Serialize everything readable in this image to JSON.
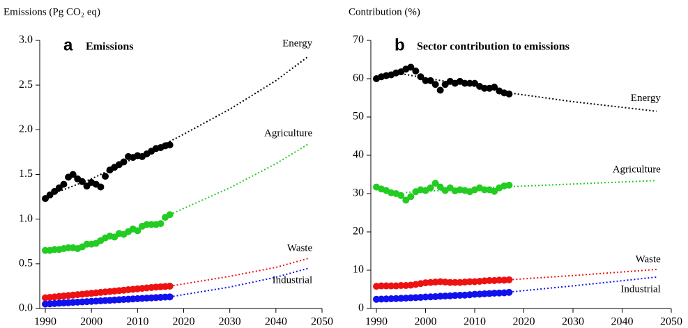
{
  "chart_data": [
    {
      "type": "scatter",
      "panel": "a",
      "title": "Emissions",
      "y_label": "Emissions (Pg CO₂ eq)",
      "x": [
        1990,
        1991,
        1992,
        1993,
        1994,
        1995,
        1996,
        1997,
        1998,
        1999,
        2000,
        2001,
        2002,
        2003,
        2004,
        2005,
        2006,
        2007,
        2008,
        2009,
        2010,
        2011,
        2012,
        2013,
        2014,
        2015,
        2016,
        2017
      ],
      "xlim": [
        1990,
        2050
      ],
      "xticks": [
        1990,
        2000,
        2010,
        2020,
        2030,
        2040,
        2050
      ],
      "ylim": [
        0,
        3
      ],
      "yticks": [
        {
          "value": 0,
          "label": "0.0"
        },
        {
          "value": 0.5,
          "label": "0.5"
        },
        {
          "value": 1,
          "label": "1.0"
        },
        {
          "value": 1.5,
          "label": "1.5"
        },
        {
          "value": 2,
          "label": "2.0"
        },
        {
          "value": 2.5,
          "label": "2.5"
        },
        {
          "value": 3,
          "label": "3.0"
        }
      ],
      "series": [
        {
          "name": "Energy",
          "color": "#000000",
          "values": [
            1.23,
            1.27,
            1.31,
            1.35,
            1.39,
            1.47,
            1.5,
            1.45,
            1.42,
            1.37,
            1.41,
            1.39,
            1.36,
            1.48,
            1.55,
            1.58,
            1.61,
            1.64,
            1.7,
            1.69,
            1.71,
            1.7,
            1.73,
            1.76,
            1.79,
            1.8,
            1.82,
            1.83
          ],
          "projection": {
            "x": [
              1990,
              2000,
              2010,
              2017,
              2020,
              2030,
              2040,
              2047
            ],
            "values": [
              1.25,
              1.45,
              1.7,
              1.87,
              1.95,
              2.23,
              2.55,
              2.82
            ]
          }
        },
        {
          "name": "Agriculture",
          "color": "#22cc22",
          "values": [
            0.65,
            0.65,
            0.66,
            0.66,
            0.67,
            0.68,
            0.68,
            0.67,
            0.69,
            0.72,
            0.72,
            0.73,
            0.76,
            0.79,
            0.81,
            0.8,
            0.84,
            0.83,
            0.86,
            0.89,
            0.87,
            0.92,
            0.94,
            0.94,
            0.94,
            0.95,
            1.02,
            1.05
          ],
          "projection": {
            "x": [
              2017,
              2020,
              2030,
              2040,
              2047
            ],
            "values": [
              1.05,
              1.12,
              1.35,
              1.62,
              1.84
            ]
          }
        },
        {
          "name": "Waste",
          "color": "#ee1111",
          "values": [
            0.12,
            0.125,
            0.13,
            0.135,
            0.14,
            0.145,
            0.15,
            0.155,
            0.16,
            0.165,
            0.17,
            0.175,
            0.18,
            0.185,
            0.19,
            0.195,
            0.2,
            0.205,
            0.21,
            0.215,
            0.22,
            0.225,
            0.23,
            0.235,
            0.24,
            0.243,
            0.246,
            0.25
          ],
          "projection": {
            "x": [
              2017,
              2030,
              2040,
              2047
            ],
            "values": [
              0.25,
              0.36,
              0.46,
              0.56
            ]
          }
        },
        {
          "name": "Industrial",
          "color": "#1111ee",
          "values": [
            0.05,
            0.053,
            0.056,
            0.059,
            0.062,
            0.065,
            0.068,
            0.071,
            0.074,
            0.077,
            0.08,
            0.083,
            0.086,
            0.089,
            0.092,
            0.095,
            0.098,
            0.101,
            0.104,
            0.107,
            0.11,
            0.113,
            0.116,
            0.119,
            0.122,
            0.125,
            0.128,
            0.13
          ],
          "projection": {
            "x": [
              2017,
              2030,
              2040,
              2047
            ],
            "values": [
              0.13,
              0.24,
              0.35,
              0.45
            ]
          }
        }
      ]
    },
    {
      "type": "scatter",
      "panel": "b",
      "title": "Sector contribution to emissions",
      "y_label": "Contribution (%)",
      "x": [
        1990,
        1991,
        1992,
        1993,
        1994,
        1995,
        1996,
        1997,
        1998,
        1999,
        2000,
        2001,
        2002,
        2003,
        2004,
        2005,
        2006,
        2007,
        2008,
        2009,
        2010,
        2011,
        2012,
        2013,
        2014,
        2015,
        2016,
        2017
      ],
      "xlim": [
        1990,
        2050
      ],
      "xticks": [
        1990,
        2000,
        2010,
        2020,
        2030,
        2040,
        2050
      ],
      "ylim": [
        0,
        70
      ],
      "yticks": [
        0,
        10,
        20,
        30,
        40,
        50,
        60,
        70
      ],
      "series": [
        {
          "name": "Energy",
          "color": "#000000",
          "values": [
            60,
            60.5,
            60.8,
            61,
            61.5,
            61.8,
            62.5,
            63,
            62,
            60.5,
            59.5,
            59.5,
            58.5,
            57,
            58.5,
            59.3,
            58.8,
            59.3,
            58.8,
            58.8,
            58.8,
            58,
            57.5,
            57.5,
            57.8,
            56.8,
            56.3,
            56
          ],
          "projection": {
            "x": [
              1995,
              2000,
              2010,
              2017,
              2030,
              2047
            ],
            "values": [
              61.3,
              60.2,
              58,
              56.3,
              54,
              51.5
            ]
          }
        },
        {
          "name": "Agriculture",
          "color": "#22cc22",
          "values": [
            31.7,
            31.2,
            30.8,
            30.2,
            30,
            29.5,
            28.3,
            29.2,
            30.5,
            31,
            30.8,
            31.5,
            32.7,
            31.7,
            30.8,
            31.5,
            30.7,
            31,
            30.8,
            30.5,
            31,
            31.5,
            31,
            31,
            30.6,
            31.5,
            32,
            32.2
          ],
          "projection": {
            "x": [
              1996,
              2017,
              2030,
              2047
            ],
            "values": [
              30.3,
              31.8,
              32.5,
              33.4
            ]
          }
        },
        {
          "name": "Waste",
          "color": "#ee1111",
          "values": [
            5.8,
            5.9,
            5.9,
            5.9,
            5.9,
            6,
            6,
            6.1,
            6.3,
            6.5,
            6.7,
            6.8,
            6.9,
            7,
            6.9,
            6.8,
            6.8,
            6.8,
            6.9,
            7,
            7,
            7.1,
            7.2,
            7.3,
            7.3,
            7.4,
            7.4,
            7.5
          ],
          "projection": {
            "x": [
              2017,
              2030,
              2047
            ],
            "values": [
              7.5,
              8.6,
              10.2
            ]
          }
        },
        {
          "name": "Industrial",
          "color": "#1111ee",
          "values": [
            2.4,
            2.45,
            2.5,
            2.55,
            2.6,
            2.65,
            2.7,
            2.8,
            2.85,
            2.9,
            3,
            3.05,
            3.1,
            3.2,
            3.25,
            3.3,
            3.4,
            3.45,
            3.5,
            3.6,
            3.7,
            3.75,
            3.85,
            3.9,
            4,
            4.05,
            4.1,
            4.2
          ],
          "projection": {
            "x": [
              2017,
              2030,
              2047
            ],
            "values": [
              4.3,
              5.9,
              8.2
            ]
          }
        }
      ]
    }
  ]
}
